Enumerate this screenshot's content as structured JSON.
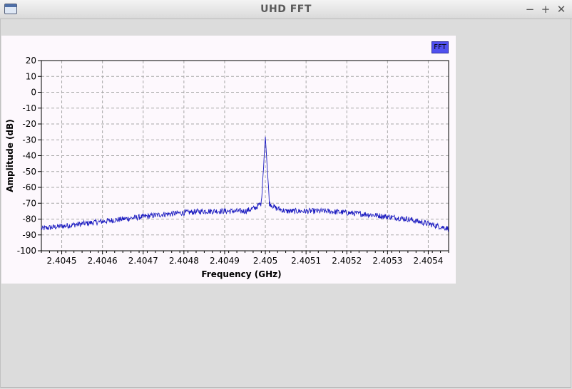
{
  "window": {
    "title": "UHD FFT",
    "buttons": {
      "minimize": "−",
      "maximize": "+",
      "close": "✕"
    }
  },
  "colors": {
    "trace": "#1c1cc0",
    "grid": "#a8a8a8",
    "legend_fill": "#5050ef",
    "plot_bg": "#fdf8fd"
  },
  "chart_data": {
    "type": "line",
    "xlabel": "Frequency (GHz)",
    "ylabel": "Amplitude (dB)",
    "xlim": [
      2.40445,
      2.40545
    ],
    "ylim": [
      -100,
      20
    ],
    "x_ticks": [
      2.4045,
      2.4046,
      2.4047,
      2.4048,
      2.4049,
      2.405,
      2.4051,
      2.4052,
      2.4053,
      2.4054
    ],
    "x_tick_labels": [
      "2.4045",
      "2.4046",
      "2.4047",
      "2.4048",
      "2.4049",
      "2.405",
      "2.4051",
      "2.4052",
      "2.4053",
      "2.4054"
    ],
    "y_ticks": [
      20,
      10,
      0,
      -10,
      -20,
      -30,
      -40,
      -50,
      -60,
      -70,
      -80,
      -90,
      -100
    ],
    "y_tick_labels": [
      "20",
      "10",
      "0",
      "-10",
      "-20",
      "-30",
      "-40",
      "-50",
      "-60",
      "-70",
      "-80",
      "-90",
      "-100"
    ],
    "grid": true,
    "legend": "top-right",
    "series": [
      {
        "name": "FFT",
        "x": [
          2.40445,
          2.40455,
          2.40465,
          2.40475,
          2.40485,
          2.4049,
          2.40495,
          2.404975,
          2.40499,
          2.405,
          2.40501,
          2.405025,
          2.40505,
          2.40515,
          2.40525,
          2.40535,
          2.40545
        ],
        "y": [
          -86,
          -83,
          -80,
          -77,
          -75,
          -75,
          -75,
          -73,
          -70,
          -28,
          -70,
          -73,
          -75,
          -75,
          -77,
          -80,
          -86
        ]
      }
    ]
  }
}
